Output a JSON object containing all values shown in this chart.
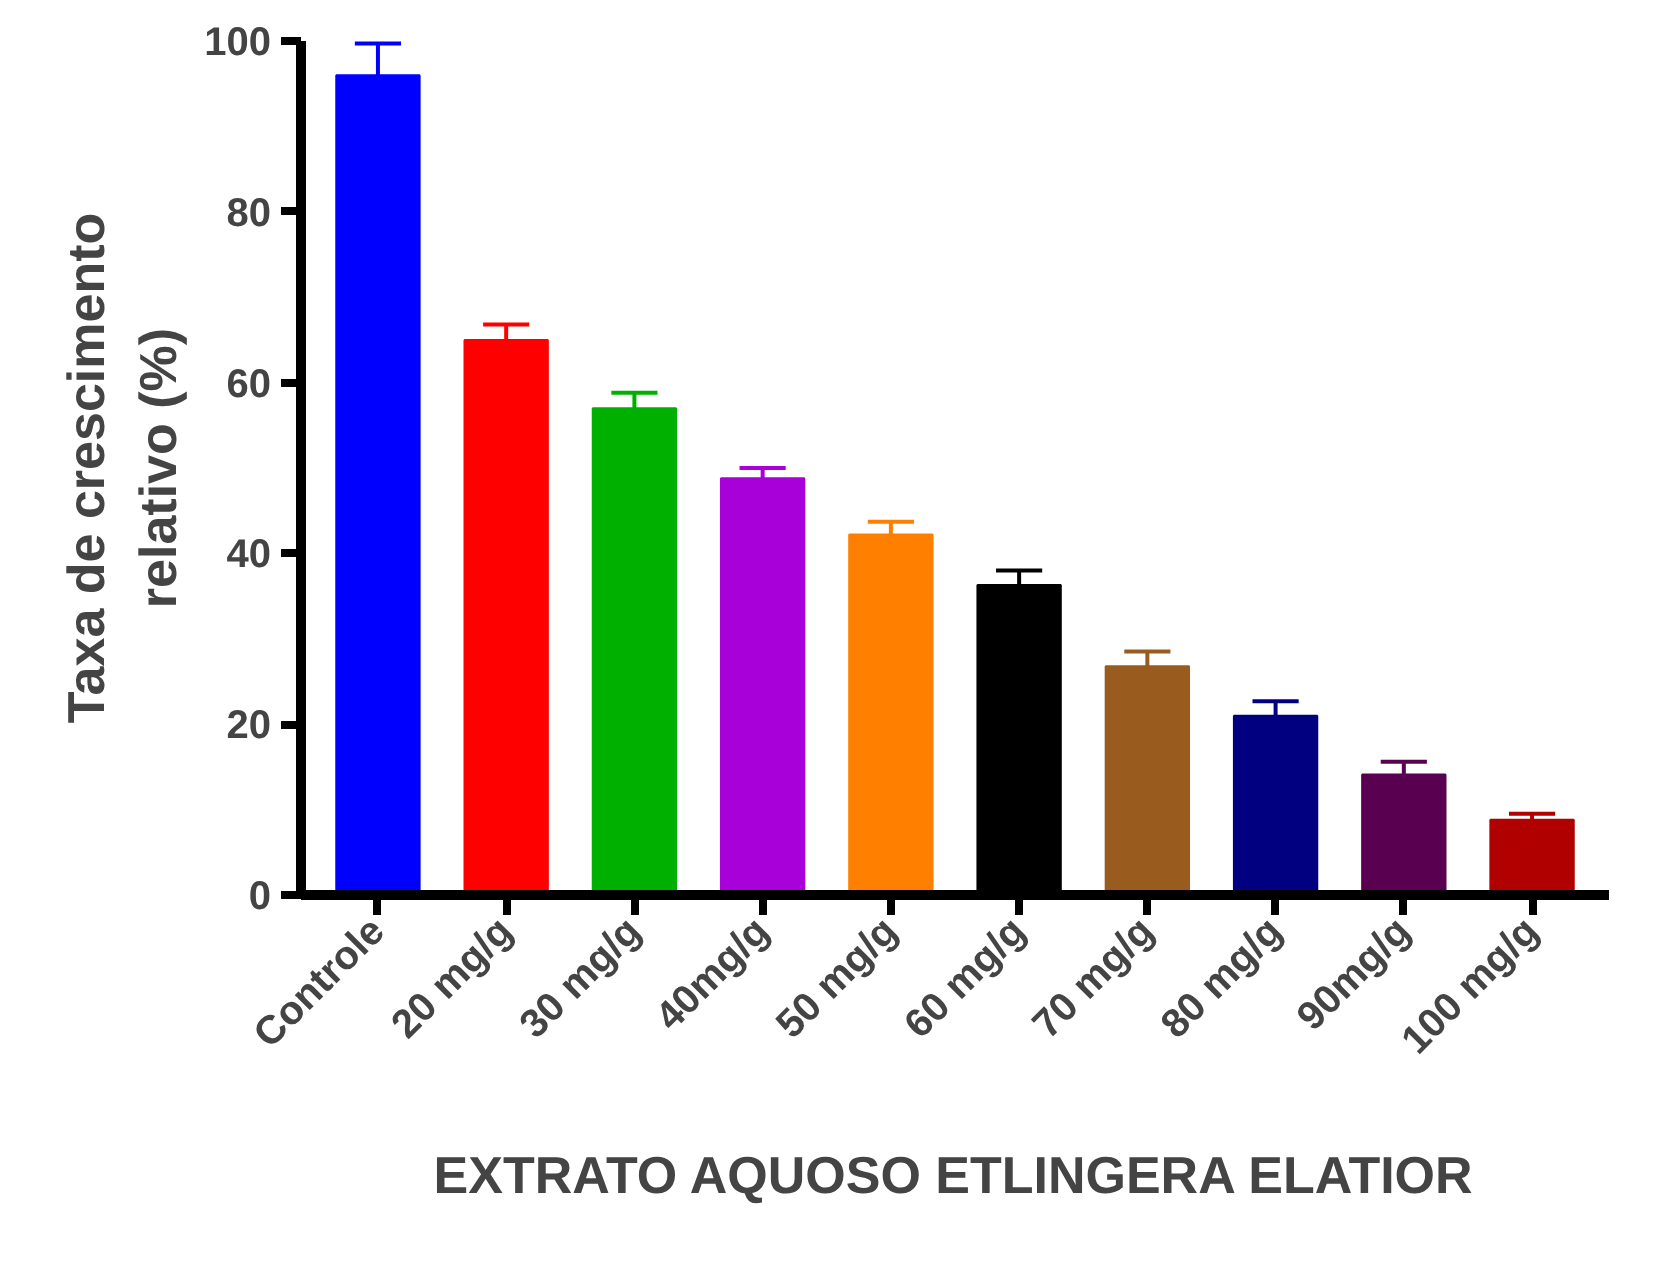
{
  "chart_data": {
    "type": "bar",
    "xlabel": "EXTRATO AQUOSO ETLINGERA ELATIOR",
    "ylabel": "Taxa de crescimento\nrelativo (%)",
    "categories": [
      "Controle",
      "20 mg/g",
      "30 mg/g",
      "40mg/g",
      "50 mg/g",
      "60 mg/g",
      "70 mg/g",
      "80 mg/g",
      "90mg/g",
      "100 mg/g"
    ],
    "values": [
      96,
      65,
      57,
      48.8,
      42.2,
      36.3,
      26.8,
      21,
      14.1,
      8.8
    ],
    "errors": [
      [
        96,
        99.7
      ],
      [
        65,
        66.8
      ],
      [
        57,
        58.8
      ],
      [
        48.8,
        50
      ],
      [
        42.2,
        43.7
      ],
      [
        36.3,
        38
      ],
      [
        26.8,
        28.5
      ],
      [
        21,
        22.7
      ],
      [
        14.1,
        15.6
      ],
      [
        8.8,
        9.5
      ]
    ],
    "colors": [
      "#0000ff",
      "#ff0000",
      "#00b000",
      "#a800d8",
      "#ff8000",
      "#000000",
      "#9a5c1e",
      "#000080",
      "#5a0050",
      "#b00000"
    ],
    "ylim": [
      0,
      100
    ],
    "yticks": [
      0,
      20,
      40,
      60,
      80,
      100
    ],
    "grid": false
  }
}
